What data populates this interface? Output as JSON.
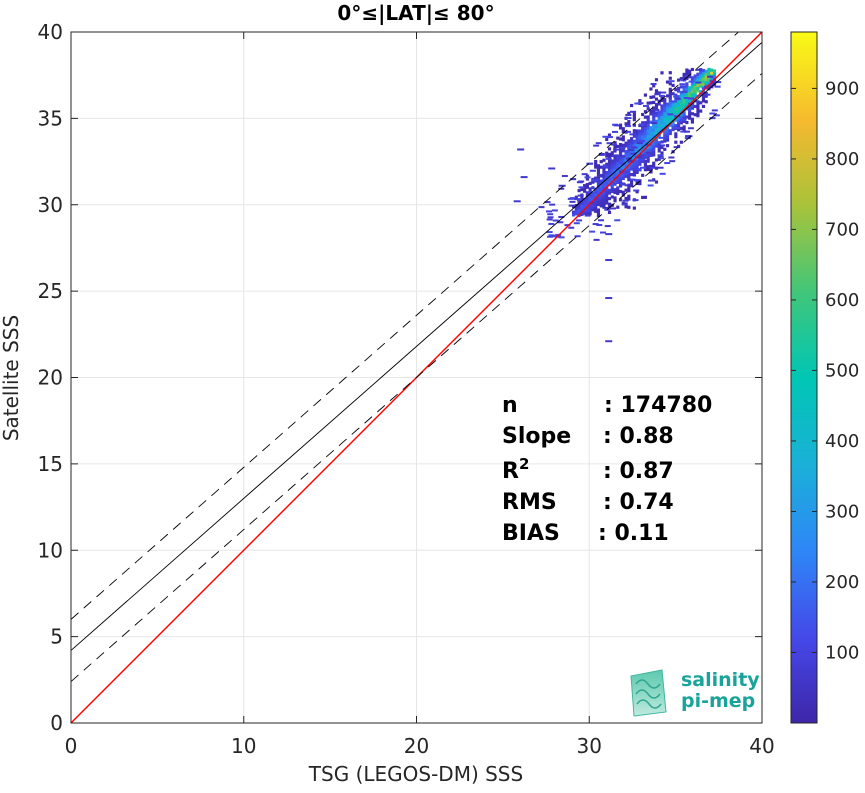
{
  "chart_data": {
    "type": "heatmap",
    "title": "0°≤|LAT|≤ 80°",
    "xlabel": "TSG (LEGOS-DM) SSS",
    "ylabel": "Satellite SSS",
    "xlim": [
      0,
      40
    ],
    "ylim": [
      0,
      40
    ],
    "xticks": [
      0,
      10,
      20,
      30,
      40
    ],
    "yticks": [
      0,
      5,
      10,
      15,
      20,
      25,
      30,
      35,
      40
    ],
    "xtick_labels": [
      "0",
      "10",
      "20",
      "30",
      "40"
    ],
    "ytick_labels": [
      "0",
      "5",
      "10",
      "15",
      "20",
      "25",
      "30",
      "35",
      "40"
    ],
    "grid": true,
    "colormap": "parula",
    "colorbar": {
      "range": [
        0,
        980
      ],
      "ticks": [
        100,
        200,
        300,
        400,
        500,
        600,
        700,
        800,
        900
      ],
      "tick_labels": [
        "100",
        "200",
        "300",
        "400",
        "500",
        "600",
        "700",
        "800",
        "900"
      ]
    },
    "lines": [
      {
        "kind": "identity",
        "color": "#ff0000",
        "style": "solid",
        "x": [
          0,
          40
        ],
        "y": [
          0,
          40
        ]
      },
      {
        "kind": "fit",
        "color": "#000000",
        "style": "solid",
        "x": [
          0,
          40
        ],
        "y": [
          4.2,
          39.4
        ]
      },
      {
        "kind": "fit-plus-2sd",
        "color": "#000000",
        "style": "dashed",
        "x": [
          0,
          40
        ],
        "y": [
          6.0,
          41.2
        ]
      },
      {
        "kind": "fit-minus-2sd",
        "color": "#000000",
        "style": "dashed",
        "x": [
          0,
          40
        ],
        "y": [
          2.4,
          37.6
        ]
      }
    ],
    "stats": [
      {
        "label": "n",
        "value": ": 174780"
      },
      {
        "label": "Slope",
        "value": ": 0.88"
      },
      {
        "label": "R",
        "sup": "2",
        "value": ": 0.87"
      },
      {
        "label": "RMS",
        "value": ": 0.74"
      },
      {
        "label": "BIAS",
        "value": ": 0.11"
      }
    ],
    "density_cluster": {
      "ridge": [
        [
          29.3,
          29.5
        ],
        [
          37.0,
          37.6
        ]
      ],
      "x_range": [
        29.0,
        37.3
      ],
      "core_color_values": [
        150,
        400,
        650,
        900
      ]
    },
    "outliers": [
      [
        31.1,
        28.3
      ],
      [
        31.1,
        26.8
      ],
      [
        31.1,
        24.6
      ],
      [
        31.1,
        22.1
      ],
      [
        25.8,
        30.2
      ],
      [
        26.2,
        31.6
      ],
      [
        27.8,
        32.1
      ],
      [
        28.4,
        31.1
      ],
      [
        26.0,
        33.2
      ]
    ]
  },
  "logo": {
    "line1": "salinity",
    "line2": "pi-mep"
  }
}
